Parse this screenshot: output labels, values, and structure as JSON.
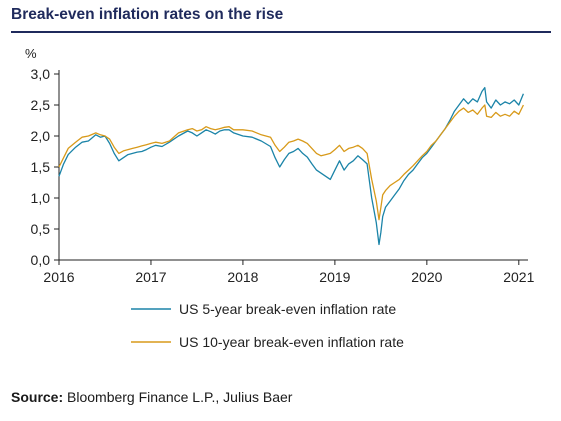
{
  "title": "Break-even inflation rates on the rise",
  "source": {
    "label": "Source:",
    "text": "Bloomberg Finance L.P., Julius Baer"
  },
  "chart_data": {
    "type": "line",
    "title": "Break-even inflation rates on the rise",
    "ylabel": "%",
    "xlabel": "",
    "xlim": [
      2016.0,
      2021.1
    ],
    "ylim": [
      0.0,
      3.0
    ],
    "yticks": [
      "0,0",
      "0,5",
      "1,0",
      "1,5",
      "2,0",
      "2,5",
      "3,0"
    ],
    "xticks": [
      "2016",
      "2017",
      "2018",
      "2019",
      "2020",
      "2021"
    ],
    "grid": false,
    "legend": "bottom",
    "series": [
      {
        "name": "US 5-year break-even inflation rate",
        "color": "#1b84a8",
        "x": [
          2016.0,
          2016.05,
          2016.1,
          2016.18,
          2016.25,
          2016.32,
          2016.4,
          2016.45,
          2016.5,
          2016.55,
          2016.6,
          2016.65,
          2016.7,
          2016.75,
          2016.8,
          2016.85,
          2016.9,
          2016.95,
          2017.0,
          2017.05,
          2017.12,
          2017.2,
          2017.3,
          2017.4,
          2017.45,
          2017.5,
          2017.55,
          2017.6,
          2017.65,
          2017.7,
          2017.75,
          2017.8,
          2017.85,
          2017.9,
          2018.0,
          2018.1,
          2018.2,
          2018.3,
          2018.35,
          2018.4,
          2018.45,
          2018.5,
          2018.55,
          2018.6,
          2018.65,
          2018.7,
          2018.75,
          2018.8,
          2018.85,
          2018.9,
          2018.95,
          2019.0,
          2019.05,
          2019.1,
          2019.15,
          2019.2,
          2019.25,
          2019.3,
          2019.35,
          2019.4,
          2019.45,
          2019.48,
          2019.5,
          2019.52,
          2019.55,
          2019.6,
          2019.65,
          2019.7,
          2019.75,
          2019.8,
          2019.85,
          2019.9,
          2019.95,
          2020.0,
          2020.05,
          2020.1,
          2020.15,
          2020.2,
          2020.25,
          2020.3,
          2020.35,
          2020.4,
          2020.45,
          2020.5,
          2020.55,
          2020.6,
          2020.63,
          2020.65,
          2020.7,
          2020.75,
          2020.8,
          2020.85,
          2020.9,
          2020.95,
          2021.0,
          2021.05
        ],
        "y": [
          1.35,
          1.55,
          1.7,
          1.82,
          1.9,
          1.92,
          2.02,
          1.98,
          2.0,
          1.88,
          1.72,
          1.6,
          1.65,
          1.7,
          1.72,
          1.74,
          1.75,
          1.78,
          1.82,
          1.85,
          1.83,
          1.9,
          2.0,
          2.08,
          2.05,
          2.0,
          2.05,
          2.1,
          2.07,
          2.03,
          2.08,
          2.1,
          2.1,
          2.05,
          2.0,
          1.98,
          1.92,
          1.83,
          1.65,
          1.5,
          1.62,
          1.72,
          1.75,
          1.8,
          1.72,
          1.66,
          1.55,
          1.45,
          1.4,
          1.35,
          1.3,
          1.45,
          1.6,
          1.45,
          1.55,
          1.6,
          1.68,
          1.62,
          1.55,
          1.0,
          0.6,
          0.25,
          0.45,
          0.7,
          0.85,
          0.95,
          1.05,
          1.15,
          1.28,
          1.38,
          1.45,
          1.55,
          1.65,
          1.72,
          1.82,
          1.92,
          2.02,
          2.12,
          2.25,
          2.4,
          2.5,
          2.6,
          2.52,
          2.6,
          2.55,
          2.72,
          2.78,
          2.55,
          2.45,
          2.58,
          2.5,
          2.55,
          2.52,
          2.58,
          2.5,
          2.68
        ]
      },
      {
        "name": "US 10-year break-even inflation rate",
        "color": "#d89a1a",
        "x": [
          2016.0,
          2016.05,
          2016.1,
          2016.18,
          2016.25,
          2016.32,
          2016.4,
          2016.45,
          2016.5,
          2016.55,
          2016.6,
          2016.65,
          2016.7,
          2016.75,
          2016.8,
          2016.85,
          2016.9,
          2016.95,
          2017.0,
          2017.05,
          2017.12,
          2017.2,
          2017.3,
          2017.4,
          2017.45,
          2017.5,
          2017.55,
          2017.6,
          2017.65,
          2017.7,
          2017.75,
          2017.8,
          2017.85,
          2017.9,
          2018.0,
          2018.1,
          2018.2,
          2018.3,
          2018.35,
          2018.4,
          2018.45,
          2018.5,
          2018.55,
          2018.6,
          2018.65,
          2018.7,
          2018.75,
          2018.8,
          2018.85,
          2018.9,
          2018.95,
          2019.0,
          2019.05,
          2019.1,
          2019.15,
          2019.2,
          2019.25,
          2019.3,
          2019.35,
          2019.4,
          2019.45,
          2019.48,
          2019.5,
          2019.52,
          2019.55,
          2019.6,
          2019.65,
          2019.7,
          2019.75,
          2019.8,
          2019.85,
          2019.9,
          2019.95,
          2020.0,
          2020.05,
          2020.1,
          2020.15,
          2020.2,
          2020.25,
          2020.3,
          2020.35,
          2020.4,
          2020.45,
          2020.5,
          2020.55,
          2020.6,
          2020.63,
          2020.65,
          2020.7,
          2020.75,
          2020.8,
          2020.85,
          2020.9,
          2020.95,
          2021.0,
          2021.05
        ],
        "y": [
          1.5,
          1.65,
          1.8,
          1.9,
          1.98,
          2.0,
          2.05,
          2.02,
          2.0,
          1.95,
          1.82,
          1.72,
          1.76,
          1.78,
          1.8,
          1.82,
          1.84,
          1.86,
          1.88,
          1.9,
          1.88,
          1.92,
          2.05,
          2.1,
          2.12,
          2.08,
          2.1,
          2.15,
          2.12,
          2.1,
          2.12,
          2.14,
          2.15,
          2.1,
          2.1,
          2.08,
          2.02,
          1.98,
          1.85,
          1.75,
          1.82,
          1.9,
          1.92,
          1.95,
          1.92,
          1.88,
          1.8,
          1.72,
          1.68,
          1.7,
          1.72,
          1.78,
          1.85,
          1.75,
          1.8,
          1.82,
          1.85,
          1.8,
          1.72,
          1.3,
          0.95,
          0.65,
          0.85,
          1.05,
          1.12,
          1.2,
          1.25,
          1.3,
          1.38,
          1.45,
          1.52,
          1.6,
          1.68,
          1.75,
          1.85,
          1.92,
          2.02,
          2.12,
          2.22,
          2.32,
          2.4,
          2.45,
          2.38,
          2.42,
          2.35,
          2.45,
          2.5,
          2.32,
          2.3,
          2.38,
          2.32,
          2.35,
          2.32,
          2.4,
          2.35,
          2.5
        ]
      }
    ]
  }
}
